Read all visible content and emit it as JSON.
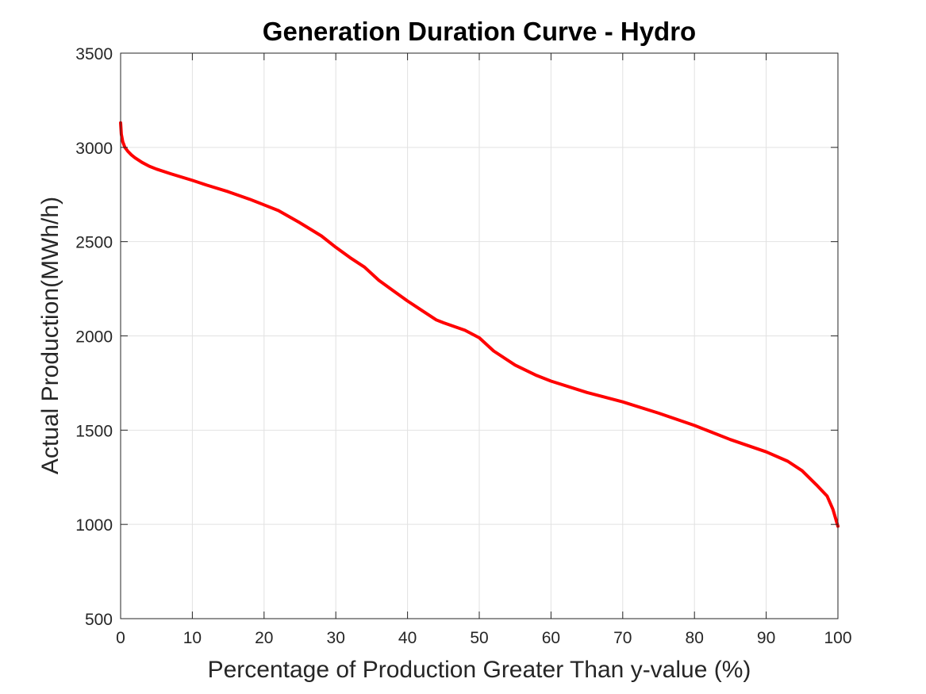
{
  "chart_data": {
    "type": "line",
    "title": "Generation Duration Curve - Hydro",
    "xlabel": "Percentage of Production Greater Than y-value (%)",
    "ylabel": "Actual Production(MWh/h)",
    "xlim": [
      0,
      100
    ],
    "ylim": [
      500,
      3500
    ],
    "xticks": [
      0,
      10,
      20,
      30,
      40,
      50,
      60,
      70,
      80,
      90,
      100
    ],
    "yticks": [
      500,
      1000,
      1500,
      2000,
      2500,
      3000,
      3500
    ],
    "grid": true,
    "series": [
      {
        "color": "#ff0000",
        "x": [
          0,
          0.1,
          0.3,
          0.6,
          1,
          1.5,
          2,
          3,
          4,
          5,
          7,
          10,
          12,
          15,
          18,
          20,
          22,
          25,
          28,
          30,
          32,
          34,
          36,
          38,
          40,
          42,
          44,
          45,
          48,
          50,
          52,
          55,
          58,
          60,
          65,
          70,
          75,
          80,
          85,
          90,
          93,
          95,
          97,
          98.5,
          99.3,
          100
        ],
        "y": [
          3130,
          3070,
          3030,
          3000,
          2980,
          2960,
          2945,
          2920,
          2900,
          2885,
          2860,
          2825,
          2800,
          2765,
          2725,
          2695,
          2665,
          2600,
          2530,
          2470,
          2415,
          2365,
          2295,
          2240,
          2185,
          2135,
          2085,
          2070,
          2030,
          1990,
          1920,
          1845,
          1790,
          1760,
          1700,
          1650,
          1590,
          1525,
          1450,
          1385,
          1335,
          1285,
          1210,
          1150,
          1080,
          990
        ]
      }
    ]
  }
}
